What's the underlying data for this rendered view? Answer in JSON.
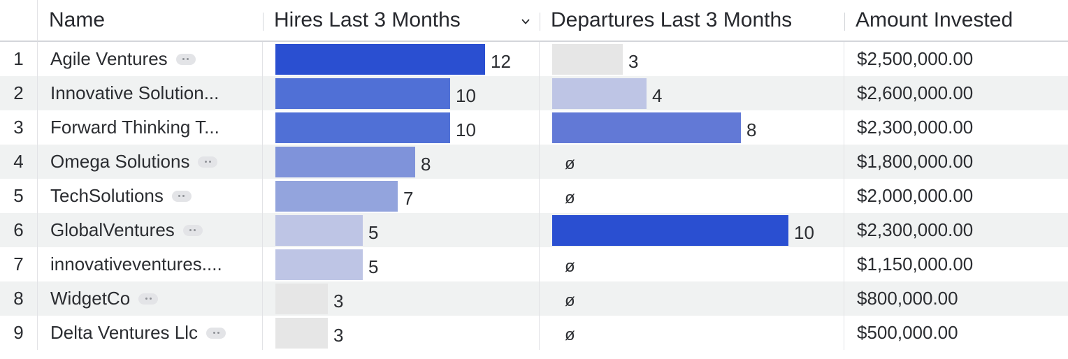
{
  "columns": {
    "name": "Name",
    "hires": "Hires Last 3 Months",
    "departures": "Departures Last 3 Months",
    "amount": "Amount Invested"
  },
  "hires_scale_max": 12,
  "departures_scale_max": 10,
  "null_symbol": "ø",
  "bar_palette": [
    "#2a4fd1",
    "#5070d6",
    "#6279d6",
    "#7f93da",
    "#93a4dd",
    "#bec5e5",
    "#cfd1e1",
    "#e6e6e6"
  ],
  "rows": [
    {
      "num": "1",
      "name": "Agile Ventures",
      "hires": 12,
      "departures": 3,
      "amount": "$2,500,000.00"
    },
    {
      "num": "2",
      "name": "Innovative Solution...",
      "hires": 10,
      "departures": 4,
      "amount": "$2,600,000.00"
    },
    {
      "num": "3",
      "name": "Forward Thinking T...",
      "hires": 10,
      "departures": 8,
      "amount": "$2,300,000.00"
    },
    {
      "num": "4",
      "name": "Omega Solutions",
      "hires": 8,
      "departures": null,
      "amount": "$1,800,000.00"
    },
    {
      "num": "5",
      "name": "TechSolutions",
      "hires": 7,
      "departures": null,
      "amount": "$2,000,000.00"
    },
    {
      "num": "6",
      "name": "GlobalVentures",
      "hires": 5,
      "departures": 10,
      "amount": "$2,300,000.00"
    },
    {
      "num": "7",
      "name": "innovativeventures....",
      "hires": 5,
      "departures": null,
      "amount": "$1,150,000.00"
    },
    {
      "num": "8",
      "name": "WidgetCo",
      "hires": 3,
      "departures": null,
      "amount": "$800,000.00"
    },
    {
      "num": "9",
      "name": "Delta Ventures Llc",
      "hires": 3,
      "departures": null,
      "amount": "$500,000.00"
    }
  ]
}
